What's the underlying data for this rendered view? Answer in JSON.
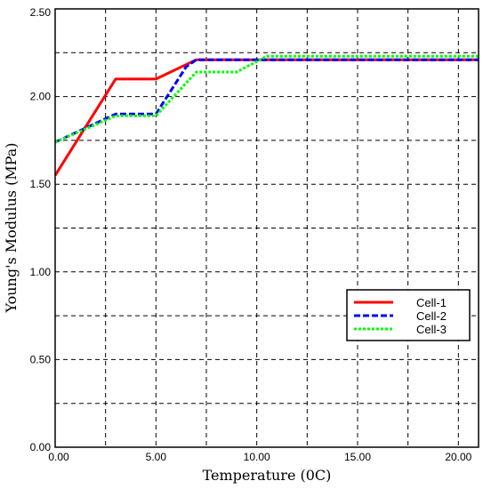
{
  "chart_data": {
    "type": "line",
    "xlabel": "Temperature (0C)",
    "ylabel": "Young's Modulus (MPa)",
    "xlim": [
      0,
      21
    ],
    "ylim": [
      0,
      2.5
    ],
    "xticks": [
      0,
      5,
      10,
      15,
      20
    ],
    "xtick_labels": [
      "0.00",
      "5.00",
      "10.00",
      "15.00",
      "20.00"
    ],
    "yticks": [
      0,
      0.5,
      1.0,
      1.5,
      2.0,
      2.5
    ],
    "ytick_labels": [
      "0.00",
      "0.50",
      "1.00",
      "1.50",
      "2.00",
      "2.50"
    ],
    "grid": true,
    "legend_position": "bottom-right",
    "series": [
      {
        "name": "Cell-1",
        "color": "#ff0000",
        "style": "solid",
        "x": [
          0,
          3,
          5,
          7,
          21
        ],
        "y": [
          1.55,
          2.1,
          2.1,
          2.21,
          2.21
        ]
      },
      {
        "name": "Cell-2",
        "color": "#0000ff",
        "style": "dashed",
        "x": [
          0,
          3,
          5,
          6.5,
          7,
          10.5,
          21
        ],
        "y": [
          1.74,
          1.9,
          1.9,
          2.17,
          2.21,
          2.21,
          2.21
        ]
      },
      {
        "name": "Cell-3",
        "color": "#00ff00",
        "style": "dotted",
        "x": [
          0,
          3,
          5,
          7,
          9,
          10.5,
          21
        ],
        "y": [
          1.74,
          1.89,
          1.89,
          2.14,
          2.14,
          2.23,
          2.23
        ]
      }
    ]
  }
}
